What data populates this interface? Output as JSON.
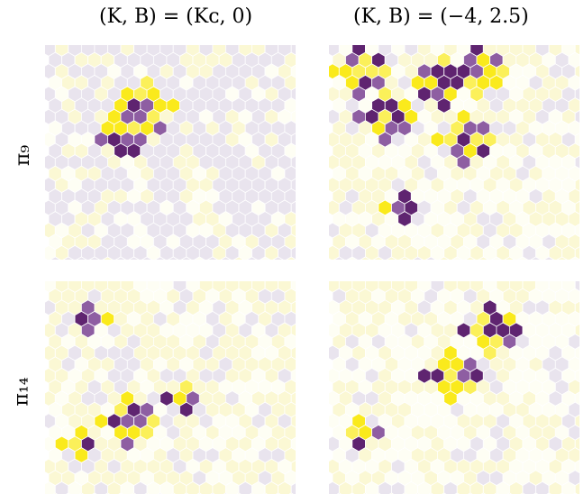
{
  "figure": {
    "column_titles": [
      "(K, B) = (Kᴄ, 0)",
      "(K, B) = (−4, 2.5)"
    ],
    "row_labels": [
      "π₉",
      "π₁₄"
    ]
  },
  "colors": {
    "background": "#ffffff",
    "level_0": "#fefef4",
    "level_1": "#fbf8d4",
    "level_2": "#e9e4ee",
    "level_3": "#fbf05a",
    "level_4": "#faea1c",
    "level_5": "#8e5ea2",
    "level_6": "#5f2470"
  }
}
